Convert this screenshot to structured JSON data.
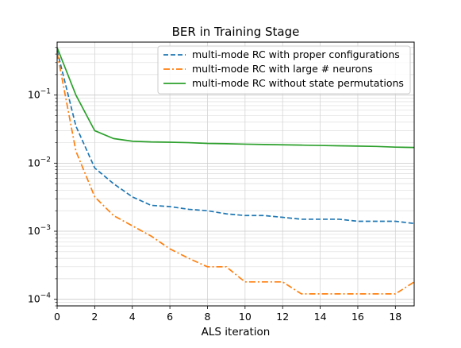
{
  "chart_data": {
    "type": "line",
    "title": "BER in Training Stage",
    "xlabel": "ALS iteration",
    "ylabel": "",
    "yscale": "log",
    "xlim": [
      0,
      19
    ],
    "ylim": [
      8e-05,
      0.6
    ],
    "xticks": [
      0,
      2,
      4,
      6,
      8,
      10,
      12,
      14,
      16,
      18
    ],
    "yticks": [
      {
        "value": 0.0001,
        "base": "10",
        "exp": "−4"
      },
      {
        "value": 0.001,
        "base": "10",
        "exp": "−3"
      },
      {
        "value": 0.01,
        "base": "10",
        "exp": "−2"
      },
      {
        "value": 0.1,
        "base": "10",
        "exp": "−1"
      }
    ],
    "grid": true,
    "legend_position": "top-right",
    "x": [
      0,
      1,
      2,
      3,
      4,
      5,
      6,
      7,
      8,
      9,
      10,
      11,
      12,
      13,
      14,
      15,
      16,
      17,
      18,
      19
    ],
    "series": [
      {
        "name": "multi-mode RC with proper configurations",
        "color": "#1f77b4",
        "dash": "dashed",
        "values": [
          0.45,
          0.035,
          0.0085,
          0.005,
          0.0032,
          0.0024,
          0.0023,
          0.0021,
          0.002,
          0.0018,
          0.0017,
          0.0017,
          0.0016,
          0.0015,
          0.0015,
          0.0015,
          0.0014,
          0.0014,
          0.0014,
          0.0013
        ]
      },
      {
        "name": "multi-mode RC with large # neurons",
        "color": "#ff7f0e",
        "dash": "dashdot",
        "values": [
          0.42,
          0.015,
          0.0032,
          0.0017,
          0.0012,
          0.00085,
          0.00055,
          0.0004,
          0.0003,
          0.0003,
          0.00018,
          0.00018,
          0.00018,
          0.00012,
          0.00012,
          0.00012,
          0.00012,
          0.00012,
          0.00012,
          0.00018
        ]
      },
      {
        "name": "multi-mode RC without state permutations",
        "color": "#2ca02c",
        "dash": "solid",
        "values": [
          0.5,
          0.1,
          0.03,
          0.023,
          0.021,
          0.0205,
          0.0203,
          0.02,
          0.0195,
          0.0193,
          0.019,
          0.0188,
          0.0186,
          0.0184,
          0.0182,
          0.018,
          0.0178,
          0.0176,
          0.0172,
          0.017
        ]
      }
    ]
  }
}
